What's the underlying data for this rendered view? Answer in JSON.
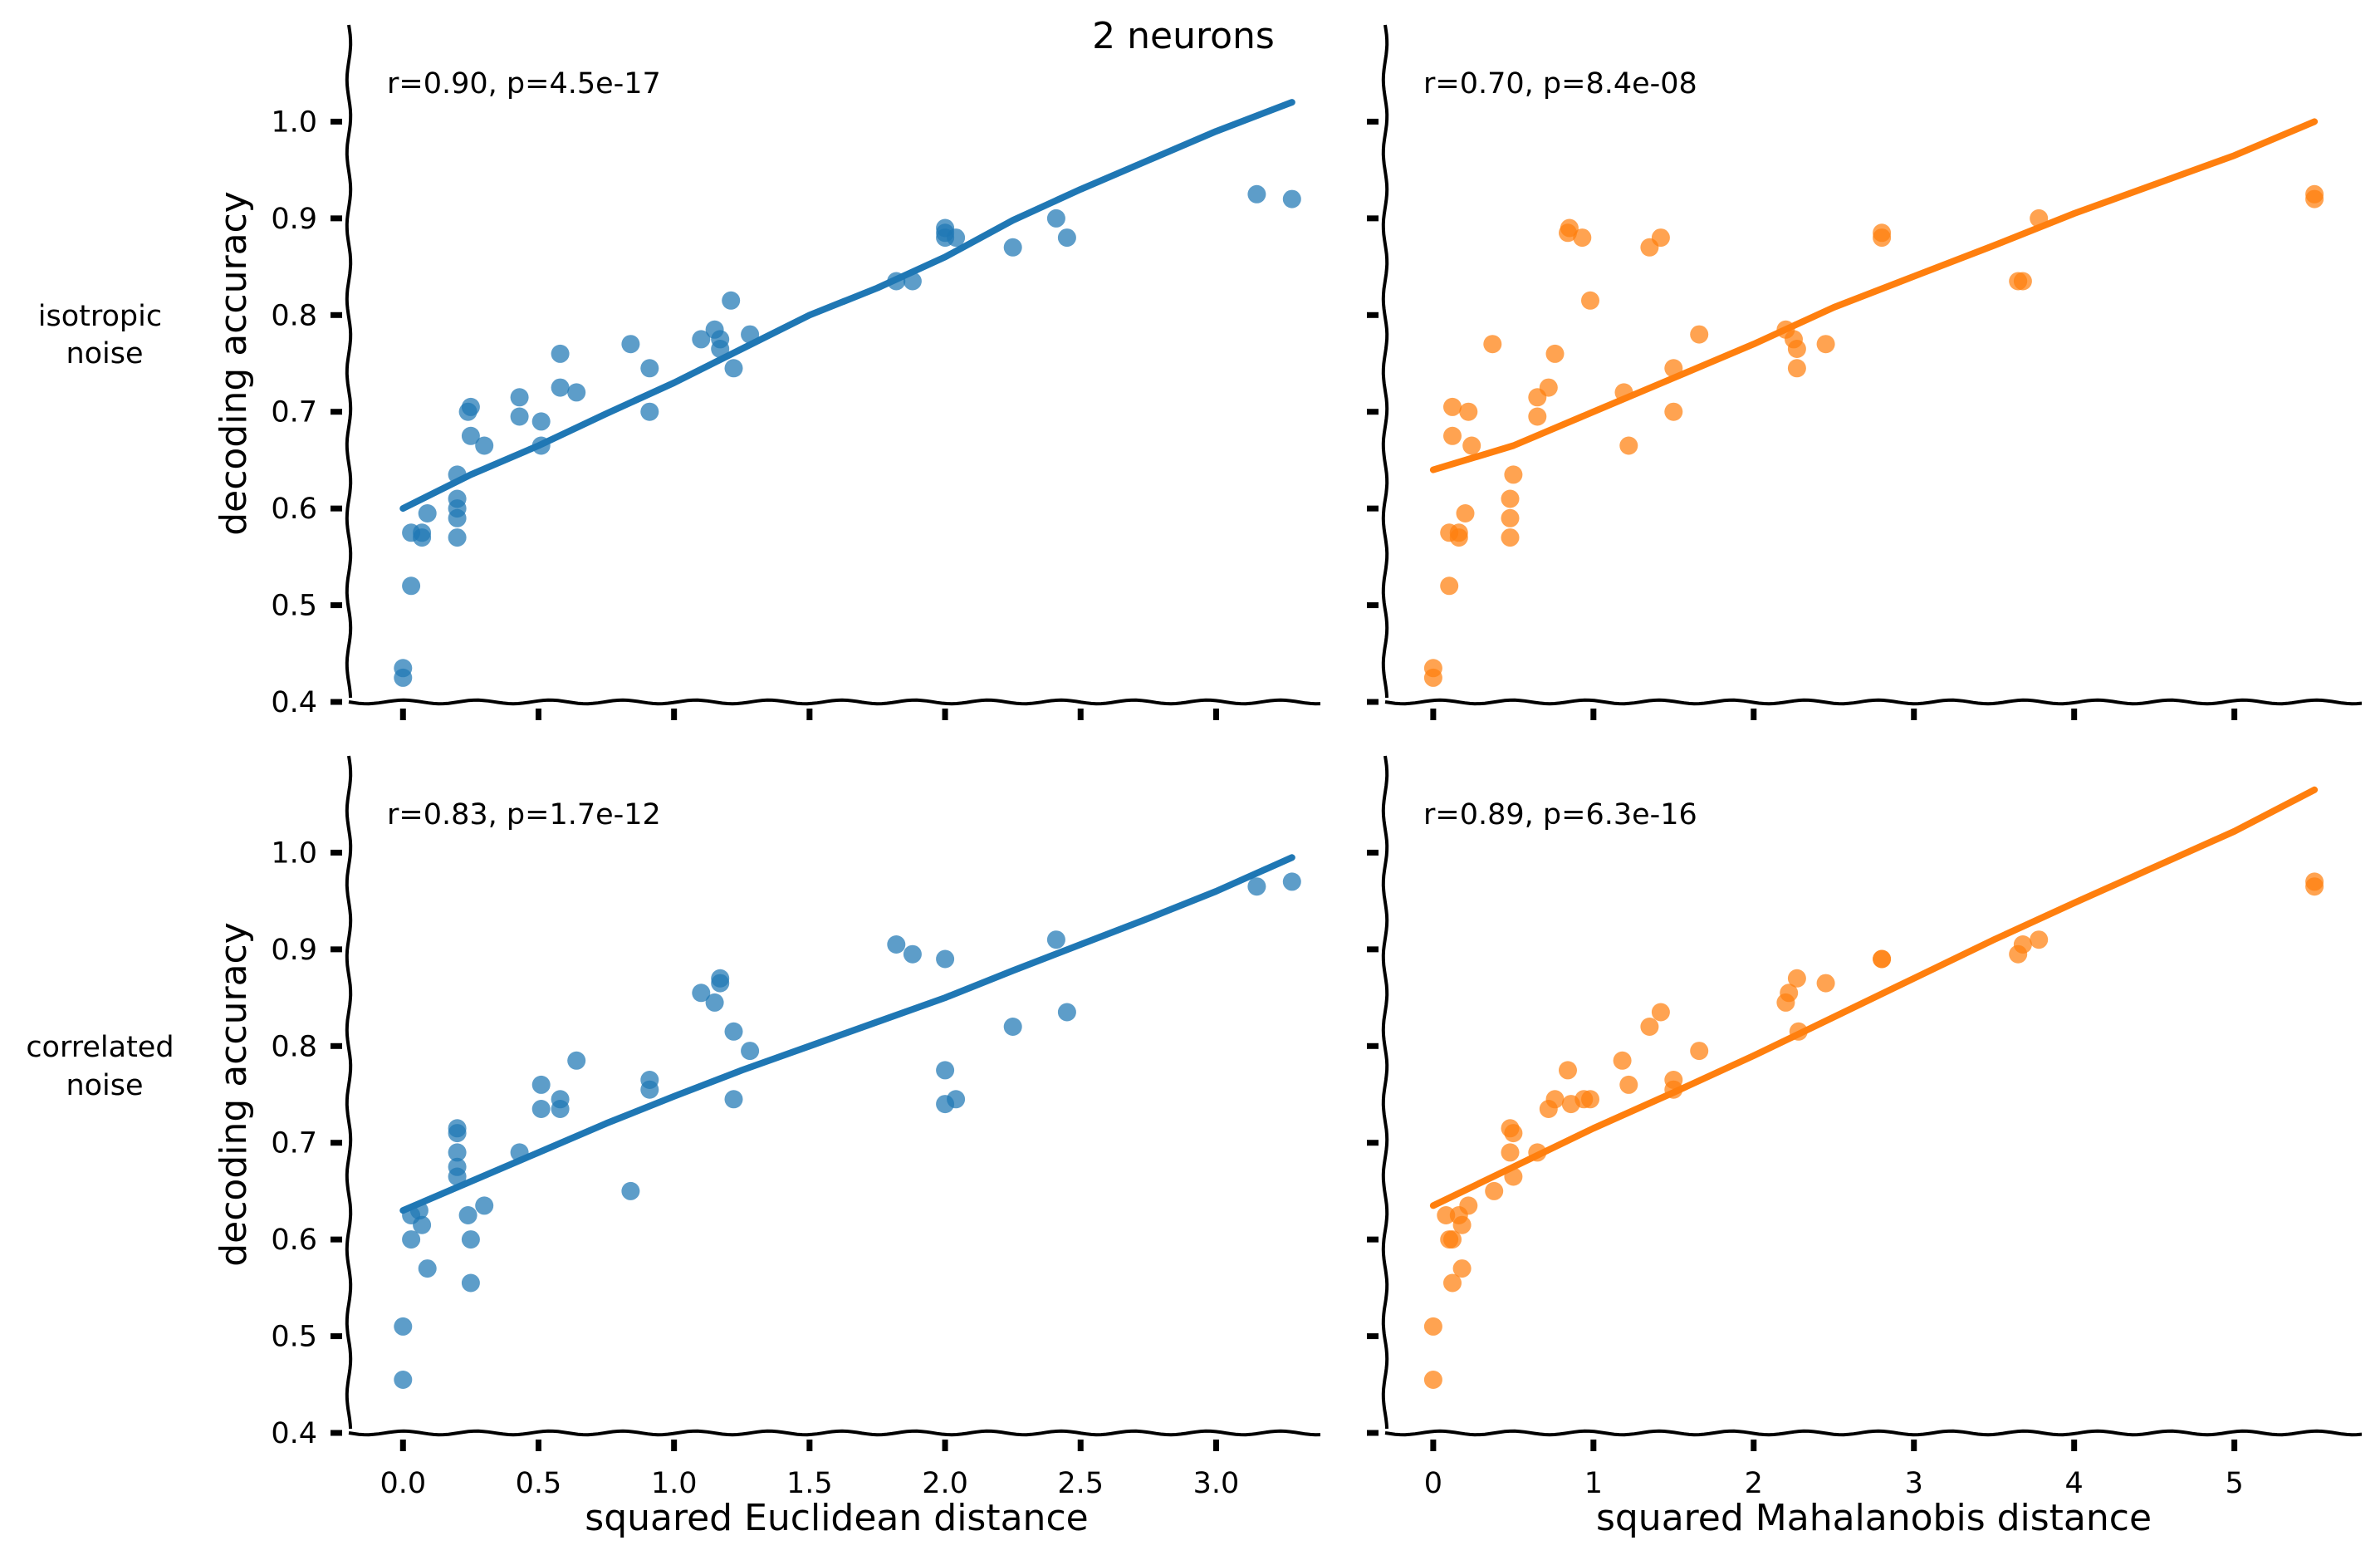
{
  "figure": {
    "suptitle": "2 neurons",
    "row_labels": [
      [
        "isotropic",
        "noise"
      ],
      [
        "correlated",
        "noise"
      ]
    ],
    "ylabel": "decoding accuracy",
    "xlabels": [
      "squared Euclidean distance",
      "squared Mahalanobis distance"
    ],
    "colors": {
      "euclidean": "#1f77b4",
      "mahalanobis": "#ff7f0e",
      "axis": "#000000"
    }
  },
  "chart_data": [
    {
      "type": "scatter",
      "row": "isotropic noise",
      "xlabel": "",
      "ylabel": "decoding accuracy",
      "annotation": "r=0.90, p=4.5e-17",
      "xlim": [
        -0.2,
        3.4
      ],
      "ylim": [
        0.4,
        1.1
      ],
      "xticks": [],
      "yticks": [
        "0.4",
        "0.5",
        "0.6",
        "0.7",
        "0.8",
        "0.9",
        "1.0"
      ],
      "color": "#1f77b4",
      "points": [
        [
          0.0,
          0.435
        ],
        [
          0.0,
          0.425
        ],
        [
          0.03,
          0.52
        ],
        [
          0.03,
          0.575
        ],
        [
          0.07,
          0.575
        ],
        [
          0.07,
          0.57
        ],
        [
          0.09,
          0.595
        ],
        [
          0.2,
          0.57
        ],
        [
          0.2,
          0.59
        ],
        [
          0.2,
          0.6
        ],
        [
          0.2,
          0.61
        ],
        [
          0.2,
          0.635
        ],
        [
          0.24,
          0.7
        ],
        [
          0.25,
          0.705
        ],
        [
          0.25,
          0.675
        ],
        [
          0.3,
          0.665
        ],
        [
          0.43,
          0.715
        ],
        [
          0.43,
          0.695
        ],
        [
          0.51,
          0.69
        ],
        [
          0.51,
          0.665
        ],
        [
          0.58,
          0.76
        ],
        [
          0.58,
          0.725
        ],
        [
          0.64,
          0.72
        ],
        [
          0.84,
          0.77
        ],
        [
          0.91,
          0.745
        ],
        [
          0.91,
          0.7
        ],
        [
          1.1,
          0.775
        ],
        [
          1.15,
          0.785
        ],
        [
          1.17,
          0.765
        ],
        [
          1.17,
          0.775
        ],
        [
          1.21,
          0.815
        ],
        [
          1.22,
          0.745
        ],
        [
          1.28,
          0.78
        ],
        [
          1.82,
          0.835
        ],
        [
          1.88,
          0.835
        ],
        [
          2.0,
          0.89
        ],
        [
          2.0,
          0.885
        ],
        [
          2.0,
          0.88
        ],
        [
          2.04,
          0.88
        ],
        [
          2.25,
          0.87
        ],
        [
          2.41,
          0.9
        ],
        [
          2.45,
          0.88
        ],
        [
          3.15,
          0.925
        ],
        [
          3.28,
          0.92
        ]
      ],
      "fit": {
        "x": [
          0.0,
          0.25,
          0.5,
          0.75,
          1.0,
          1.25,
          1.5,
          1.75,
          2.0,
          2.25,
          2.5,
          2.75,
          3.0,
          3.28
        ],
        "y": [
          0.6,
          0.635,
          0.665,
          0.698,
          0.73,
          0.765,
          0.8,
          0.828,
          0.86,
          0.898,
          0.93,
          0.96,
          0.99,
          1.02
        ]
      }
    },
    {
      "type": "scatter",
      "row": "isotropic noise",
      "xlabel": "",
      "ylabel": "",
      "annotation": "r=0.70, p=8.4e-08",
      "xlim": [
        -0.3,
        5.8
      ],
      "ylim": [
        0.4,
        1.1
      ],
      "xticks": [],
      "yticks": [],
      "color": "#ff7f0e",
      "points": [
        [
          0.0,
          0.435
        ],
        [
          0.0,
          0.425
        ],
        [
          0.1,
          0.575
        ],
        [
          0.1,
          0.52
        ],
        [
          0.12,
          0.705
        ],
        [
          0.12,
          0.675
        ],
        [
          0.16,
          0.575
        ],
        [
          0.16,
          0.57
        ],
        [
          0.2,
          0.595
        ],
        [
          0.22,
          0.7
        ],
        [
          0.24,
          0.665
        ],
        [
          0.37,
          0.77
        ],
        [
          0.48,
          0.57
        ],
        [
          0.48,
          0.59
        ],
        [
          0.48,
          0.61
        ],
        [
          0.5,
          0.635
        ],
        [
          0.65,
          0.715
        ],
        [
          0.65,
          0.695
        ],
        [
          0.72,
          0.725
        ],
        [
          0.76,
          0.76
        ],
        [
          0.84,
          0.885
        ],
        [
          0.85,
          0.89
        ],
        [
          0.93,
          0.88
        ],
        [
          0.98,
          0.815
        ],
        [
          1.19,
          0.72
        ],
        [
          1.22,
          0.665
        ],
        [
          1.35,
          0.87
        ],
        [
          1.42,
          0.88
        ],
        [
          1.5,
          0.745
        ],
        [
          1.5,
          0.7
        ],
        [
          1.66,
          0.78
        ],
        [
          2.2,
          0.785
        ],
        [
          2.25,
          0.775
        ],
        [
          2.27,
          0.765
        ],
        [
          2.27,
          0.745
        ],
        [
          2.45,
          0.77
        ],
        [
          2.8,
          0.885
        ],
        [
          2.8,
          0.88
        ],
        [
          3.65,
          0.835
        ],
        [
          3.68,
          0.835
        ],
        [
          3.78,
          0.9
        ],
        [
          5.5,
          0.925
        ],
        [
          5.5,
          0.92
        ]
      ],
      "fit": {
        "x": [
          0.0,
          0.5,
          1.0,
          1.5,
          2.0,
          2.5,
          3.0,
          3.5,
          4.0,
          4.5,
          5.0,
          5.5
        ],
        "y": [
          0.64,
          0.665,
          0.7,
          0.735,
          0.77,
          0.808,
          0.84,
          0.872,
          0.905,
          0.935,
          0.965,
          1.0
        ]
      }
    },
    {
      "type": "scatter",
      "row": "correlated noise",
      "xlabel": "squared Euclidean distance",
      "ylabel": "decoding accuracy",
      "annotation": "r=0.83, p=1.7e-12",
      "xlim": [
        -0.2,
        3.4
      ],
      "ylim": [
        0.4,
        1.1
      ],
      "xticks": [
        "0.0",
        "0.5",
        "1.0",
        "1.5",
        "2.0",
        "2.5",
        "3.0"
      ],
      "yticks": [
        "0.4",
        "0.5",
        "0.6",
        "0.7",
        "0.8",
        "0.9",
        "1.0"
      ],
      "color": "#1f77b4",
      "points": [
        [
          0.0,
          0.51
        ],
        [
          0.0,
          0.455
        ],
        [
          0.03,
          0.625
        ],
        [
          0.03,
          0.6
        ],
        [
          0.06,
          0.63
        ],
        [
          0.07,
          0.615
        ],
        [
          0.09,
          0.57
        ],
        [
          0.2,
          0.715
        ],
        [
          0.2,
          0.71
        ],
        [
          0.2,
          0.69
        ],
        [
          0.2,
          0.675
        ],
        [
          0.2,
          0.665
        ],
        [
          0.24,
          0.625
        ],
        [
          0.25,
          0.6
        ],
        [
          0.25,
          0.555
        ],
        [
          0.3,
          0.635
        ],
        [
          0.43,
          0.69
        ],
        [
          0.51,
          0.76
        ],
        [
          0.51,
          0.735
        ],
        [
          0.58,
          0.745
        ],
        [
          0.58,
          0.735
        ],
        [
          0.64,
          0.785
        ],
        [
          0.84,
          0.65
        ],
        [
          0.91,
          0.765
        ],
        [
          0.91,
          0.755
        ],
        [
          1.1,
          0.855
        ],
        [
          1.15,
          0.845
        ],
        [
          1.17,
          0.87
        ],
        [
          1.17,
          0.865
        ],
        [
          1.22,
          0.815
        ],
        [
          1.22,
          0.745
        ],
        [
          1.28,
          0.795
        ],
        [
          1.82,
          0.905
        ],
        [
          1.88,
          0.895
        ],
        [
          2.0,
          0.89
        ],
        [
          2.0,
          0.775
        ],
        [
          2.0,
          0.74
        ],
        [
          2.04,
          0.745
        ],
        [
          2.25,
          0.82
        ],
        [
          2.41,
          0.91
        ],
        [
          2.45,
          0.835
        ],
        [
          3.15,
          0.965
        ],
        [
          3.28,
          0.97
        ]
      ],
      "fit": {
        "x": [
          0.0,
          0.25,
          0.5,
          0.75,
          1.0,
          1.25,
          1.5,
          1.75,
          2.0,
          2.25,
          2.5,
          2.75,
          3.0,
          3.28
        ],
        "y": [
          0.63,
          0.66,
          0.69,
          0.72,
          0.748,
          0.775,
          0.8,
          0.825,
          0.85,
          0.878,
          0.905,
          0.932,
          0.96,
          0.995
        ]
      }
    },
    {
      "type": "scatter",
      "row": "correlated noise",
      "xlabel": "squared Mahalanobis distance",
      "ylabel": "",
      "annotation": "r=0.89, p=6.3e-16",
      "xlim": [
        -0.3,
        5.8
      ],
      "ylim": [
        0.4,
        1.1
      ],
      "xticks": [
        "0",
        "1",
        "2",
        "3",
        "4",
        "5"
      ],
      "yticks": [],
      "color": "#ff7f0e",
      "points": [
        [
          0.0,
          0.51
        ],
        [
          0.0,
          0.455
        ],
        [
          0.08,
          0.625
        ],
        [
          0.1,
          0.6
        ],
        [
          0.12,
          0.6
        ],
        [
          0.12,
          0.555
        ],
        [
          0.16,
          0.625
        ],
        [
          0.18,
          0.615
        ],
        [
          0.18,
          0.57
        ],
        [
          0.22,
          0.635
        ],
        [
          0.38,
          0.65
        ],
        [
          0.48,
          0.715
        ],
        [
          0.48,
          0.69
        ],
        [
          0.5,
          0.71
        ],
        [
          0.5,
          0.665
        ],
        [
          0.65,
          0.69
        ],
        [
          0.72,
          0.735
        ],
        [
          0.76,
          0.745
        ],
        [
          0.84,
          0.775
        ],
        [
          0.86,
          0.74
        ],
        [
          0.94,
          0.745
        ],
        [
          0.98,
          0.745
        ],
        [
          1.18,
          0.785
        ],
        [
          1.22,
          0.76
        ],
        [
          1.35,
          0.82
        ],
        [
          1.42,
          0.835
        ],
        [
          1.5,
          0.765
        ],
        [
          1.5,
          0.755
        ],
        [
          1.66,
          0.795
        ],
        [
          2.2,
          0.845
        ],
        [
          2.22,
          0.855
        ],
        [
          2.27,
          0.87
        ],
        [
          2.28,
          0.815
        ],
        [
          2.45,
          0.865
        ],
        [
          2.8,
          0.89
        ],
        [
          2.8,
          0.89
        ],
        [
          3.65,
          0.895
        ],
        [
          3.68,
          0.905
        ],
        [
          3.78,
          0.91
        ],
        [
          5.5,
          0.97
        ],
        [
          5.5,
          0.965
        ]
      ],
      "fit": {
        "x": [
          0.0,
          0.5,
          1.0,
          1.5,
          2.0,
          2.5,
          3.0,
          3.5,
          4.0,
          4.5,
          5.0,
          5.5
        ],
        "y": [
          0.635,
          0.675,
          0.715,
          0.752,
          0.79,
          0.83,
          0.87,
          0.91,
          0.948,
          0.985,
          1.022,
          1.065
        ]
      }
    }
  ]
}
